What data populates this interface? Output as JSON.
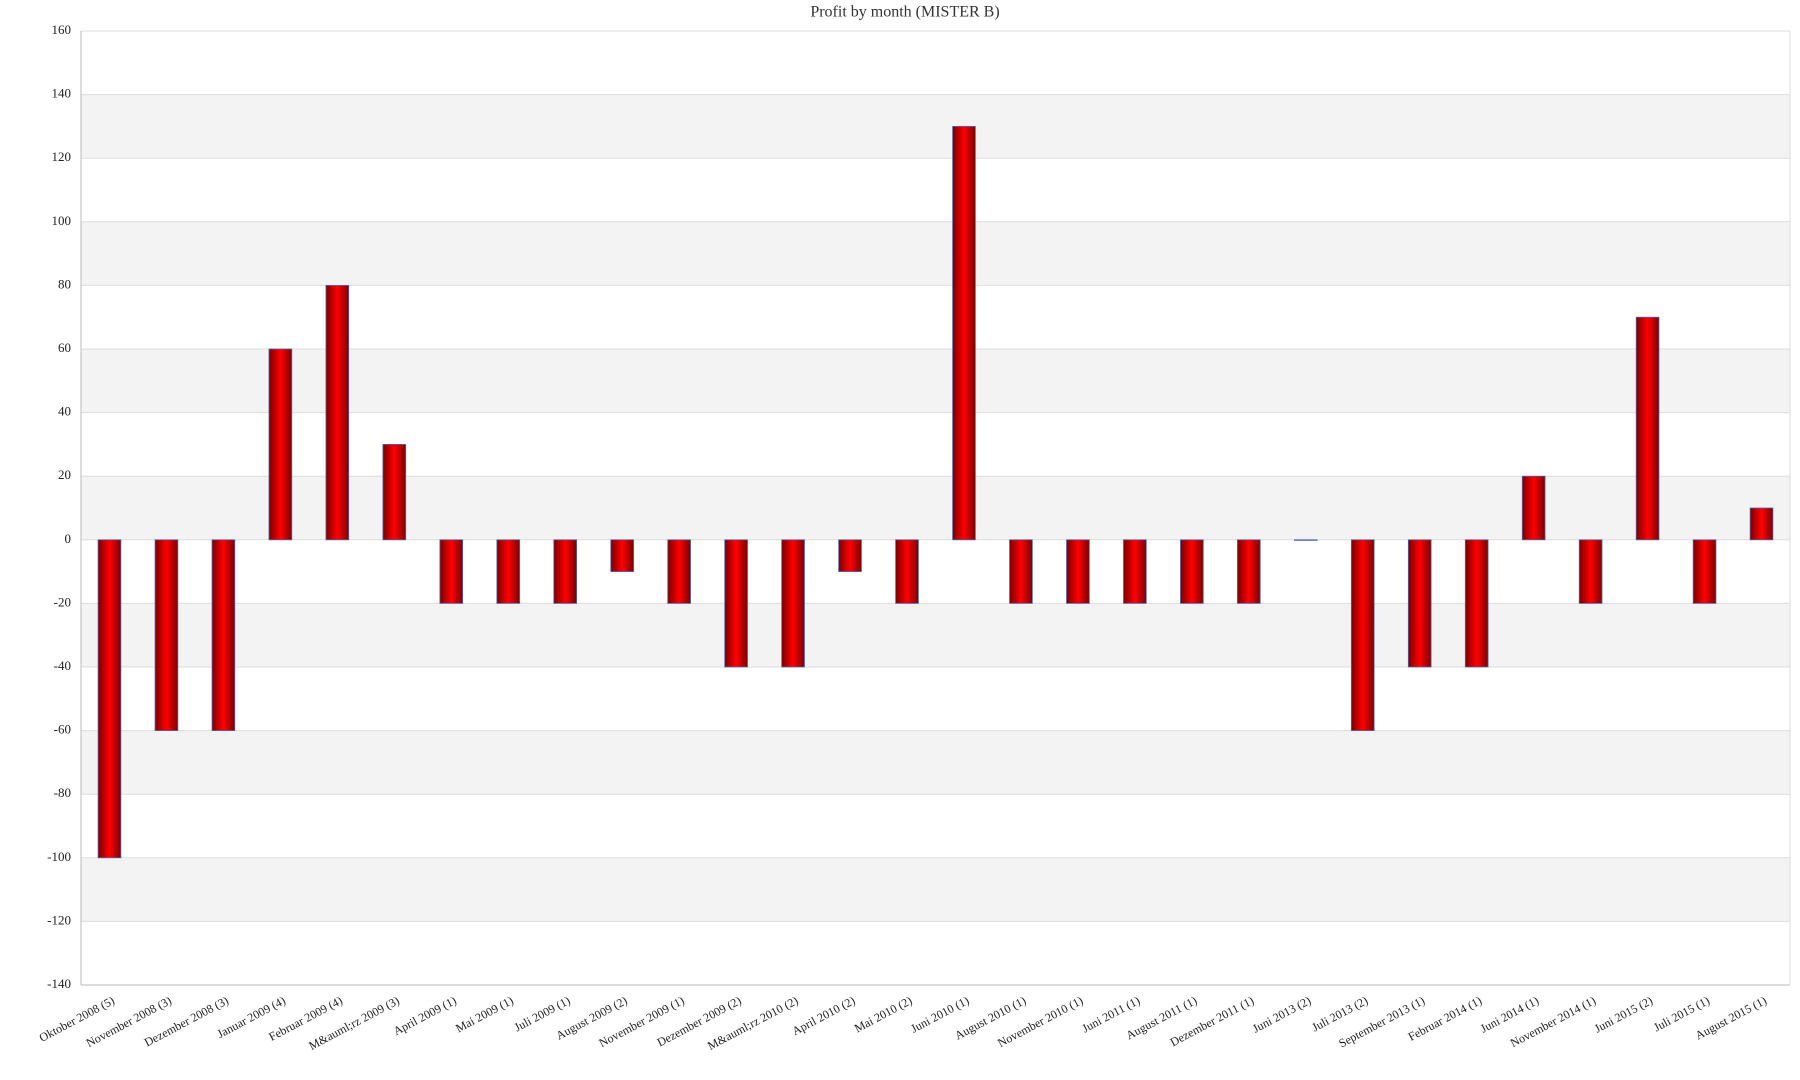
{
  "chart_data": {
    "type": "bar",
    "title": "Profit by month  (MISTER B)",
    "categories": [
      "Oktober 2008 (5)",
      "November 2008 (3)",
      "Dezember 2008 (3)",
      "Januar 2009 (4)",
      "Februar 2009 (4)",
      "M&auml;rz 2009 (3)",
      "April 2009 (1)",
      "Mai 2009 (1)",
      "Juli 2009 (1)",
      "August 2009 (2)",
      "November 2009 (1)",
      "Dezember 2009 (2)",
      "M&auml;rz 2010 (2)",
      "April 2010 (2)",
      "Mai 2010 (2)",
      "Juni 2010 (1)",
      "August 2010 (1)",
      "November 2010 (1)",
      "Juni 2011 (1)",
      "August 2011 (1)",
      "Dezember 2011 (1)",
      "Juni 2013 (2)",
      "Juli 2013 (2)",
      "September 2013 (1)",
      "Februar 2014 (1)",
      "Juni 2014 (1)",
      "November 2014 (1)",
      "Juni 2015 (2)",
      "Juli 2015 (1)",
      "August 2015 (1)"
    ],
    "values": [
      -100,
      -60,
      -60,
      60,
      80,
      30,
      -20,
      -20,
      -20,
      -10,
      -20,
      -40,
      -40,
      -10,
      -20,
      130,
      -20,
      -20,
      -20,
      -20,
      -20,
      0,
      -60,
      -40,
      -40,
      20,
      -20,
      70,
      -20,
      10
    ],
    "color": "#e00000",
    "ylim": [
      -140,
      160
    ],
    "yticks": [
      -140,
      -120,
      -100,
      -80,
      -60,
      -40,
      -20,
      0,
      20,
      40,
      60,
      80,
      100,
      120,
      140,
      160
    ],
    "grid": true
  }
}
